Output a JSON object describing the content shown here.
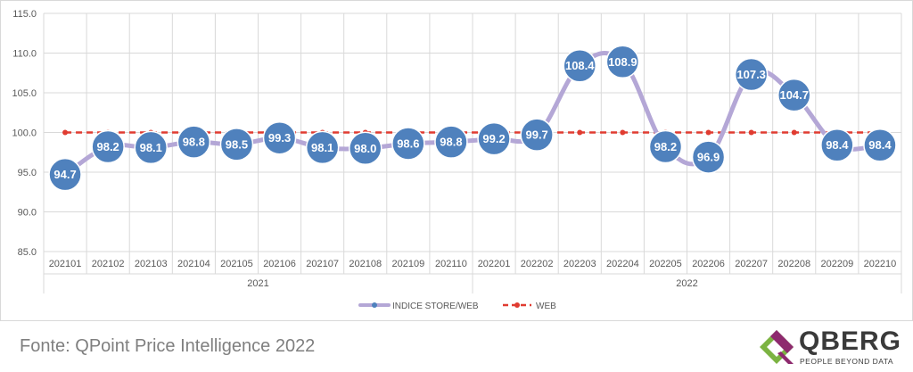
{
  "chart_data": {
    "type": "line",
    "categories": [
      "202101",
      "202102",
      "202103",
      "202104",
      "202105",
      "202106",
      "202107",
      "202108",
      "202109",
      "202110",
      "202201",
      "202202",
      "202203",
      "202204",
      "202205",
      "202206",
      "202207",
      "202208",
      "202209",
      "202210"
    ],
    "groups": [
      {
        "label": "2021",
        "from": 0,
        "to": 9
      },
      {
        "label": "2022",
        "from": 10,
        "to": 19
      }
    ],
    "series": [
      {
        "name": "INDICE STORE/WEB",
        "color": "#b4a7d6",
        "marker_color": "#4f81bd",
        "values": [
          94.7,
          98.2,
          98.1,
          98.8,
          98.5,
          99.3,
          98.1,
          98.0,
          98.6,
          98.8,
          99.2,
          99.7,
          108.4,
          108.9,
          98.2,
          96.9,
          107.3,
          104.7,
          98.4,
          98.4
        ],
        "labels": [
          "94.7",
          "98.2",
          "98.1",
          "98.8",
          "98.5",
          "99.3",
          "98.1",
          "98.0",
          "98.6",
          "98.8",
          "99.2",
          "99.7",
          "108.4",
          "108.9",
          "98.2",
          "96.9",
          "107.3",
          "104.7",
          "98.4",
          "98.4"
        ]
      },
      {
        "name": "WEB",
        "color": "#e03c31",
        "values": [
          100,
          100,
          100,
          100,
          100,
          100,
          100,
          100,
          100,
          100,
          100,
          100,
          100,
          100,
          100,
          100,
          100,
          100,
          100,
          100
        ]
      }
    ],
    "yticks": [
      "85.0",
      "90.0",
      "95.0",
      "100.0",
      "105.0",
      "110.0",
      "115.0"
    ],
    "ylim": [
      85,
      115
    ],
    "grid": true,
    "legend_position": "bottom"
  },
  "footer": {
    "source": "Fonte: QPoint Price Intelligence 2022",
    "logo_name": "QBERG",
    "logo_tagline": "PEOPLE BEYOND DATA"
  }
}
